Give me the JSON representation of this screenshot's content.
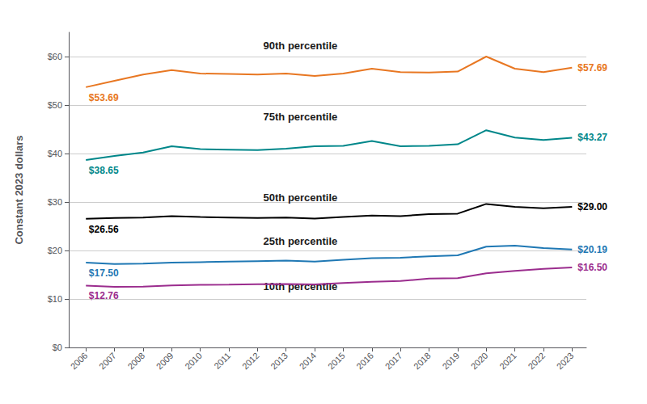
{
  "chart_data": {
    "type": "line",
    "x": [
      2006,
      2007,
      2008,
      2009,
      2010,
      2011,
      2012,
      2013,
      2014,
      2015,
      2016,
      2017,
      2018,
      2019,
      2020,
      2021,
      2022,
      2023
    ],
    "xlim": [
      2005.4,
      2023.5
    ],
    "xticks": [
      2006,
      2007,
      2008,
      2009,
      2010,
      2011,
      2012,
      2013,
      2014,
      2015,
      2016,
      2017,
      2018,
      2019,
      2020,
      2021,
      2022,
      2023
    ],
    "ylabel": "Constant 2023 dollars",
    "ylim": [
      0,
      65
    ],
    "yticks": [
      {
        "value": 0,
        "label": "$0"
      },
      {
        "value": 10,
        "label": "$10"
      },
      {
        "value": 20,
        "label": "$20"
      },
      {
        "value": 30,
        "label": "$30"
      },
      {
        "value": 40,
        "label": "$40"
      },
      {
        "value": 50,
        "label": "$50"
      },
      {
        "value": 60,
        "label": "$60"
      }
    ],
    "grid": true,
    "series": [
      {
        "color": "#e87722",
        "values": [
          53.69,
          55.0,
          56.3,
          57.2,
          56.5,
          56.4,
          56.3,
          56.5,
          56.0,
          56.5,
          57.5,
          56.8,
          56.7,
          56.9,
          60.0,
          57.5,
          56.8,
          57.69
        ],
        "value_labels": [
          "$53.69",
          null,
          null,
          null,
          null,
          null,
          null,
          null,
          null,
          null,
          null,
          null,
          null,
          null,
          null,
          null,
          null,
          "$57.69"
        ]
      },
      {
        "color": "#00878a",
        "values": [
          38.65,
          39.5,
          40.2,
          41.5,
          40.9,
          40.8,
          40.7,
          41.0,
          41.5,
          41.6,
          42.6,
          41.5,
          41.6,
          41.9,
          44.8,
          43.3,
          42.8,
          43.27
        ],
        "value_labels": [
          "$38.65",
          null,
          null,
          null,
          null,
          null,
          null,
          null,
          null,
          null,
          null,
          null,
          null,
          null,
          null,
          null,
          null,
          "$43.27"
        ]
      },
      {
        "color": "#000000",
        "values": [
          26.56,
          26.7,
          26.8,
          27.1,
          26.9,
          26.8,
          26.7,
          26.8,
          26.6,
          26.9,
          27.2,
          27.1,
          27.5,
          27.6,
          29.6,
          29.0,
          28.7,
          29.0
        ],
        "value_labels": [
          "$26.56",
          null,
          null,
          null,
          null,
          null,
          null,
          null,
          null,
          null,
          null,
          null,
          null,
          null,
          null,
          null,
          null,
          "$29.00"
        ]
      },
      {
        "color": "#1f78b4",
        "values": [
          17.5,
          17.2,
          17.3,
          17.5,
          17.6,
          17.7,
          17.8,
          17.9,
          17.7,
          18.1,
          18.4,
          18.5,
          18.8,
          19.0,
          20.8,
          21.0,
          20.5,
          20.19
        ],
        "value_labels": [
          "$17.50",
          null,
          null,
          null,
          null,
          null,
          null,
          null,
          null,
          null,
          null,
          null,
          null,
          null,
          null,
          null,
          null,
          "$20.19"
        ]
      },
      {
        "color": "#9b2d8e",
        "values": [
          12.76,
          12.5,
          12.55,
          12.8,
          12.9,
          12.95,
          13.05,
          13.1,
          13.0,
          13.3,
          13.55,
          13.7,
          14.2,
          14.3,
          15.3,
          15.8,
          16.2,
          16.5
        ],
        "value_labels": [
          "$12.76",
          null,
          null,
          null,
          null,
          null,
          null,
          null,
          null,
          null,
          null,
          null,
          null,
          null,
          null,
          null,
          null,
          "$16.50"
        ]
      }
    ],
    "annotations": [
      {
        "text": "90th percentile",
        "x": 2013.5,
        "y": 61.2
      },
      {
        "text": "75th percentile",
        "x": 2013.5,
        "y": 46.5
      },
      {
        "text": "50th percentile",
        "x": 2013.5,
        "y": 29.8
      },
      {
        "text": "25th percentile",
        "x": 2013.5,
        "y": 20.8
      },
      {
        "text": "10th percentile",
        "x": 2013.5,
        "y": 11.5
      }
    ]
  }
}
